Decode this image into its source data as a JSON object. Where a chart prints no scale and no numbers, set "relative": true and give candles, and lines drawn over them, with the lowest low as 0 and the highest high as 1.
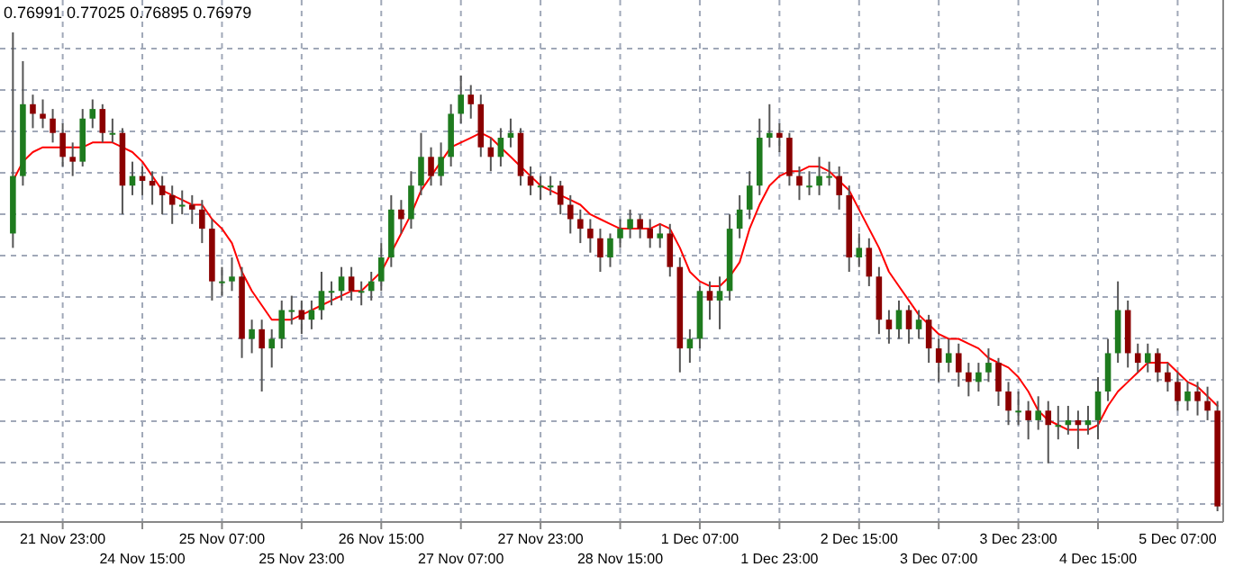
{
  "chart_data": {
    "type": "candlestick",
    "relative": true,
    "grid": true,
    "annotations": [
      "0.76991 0.77025 0.76895 0.76979"
    ],
    "categories": [
      null,
      null,
      null,
      null,
      null,
      "21 Nov 23:00",
      null,
      null,
      null,
      null,
      null,
      null,
      null,
      "24 Nov 15:00",
      null,
      null,
      null,
      null,
      null,
      null,
      null,
      "25 Nov 07:00",
      null,
      null,
      null,
      null,
      null,
      null,
      null,
      "25 Nov 23:00",
      null,
      null,
      null,
      null,
      null,
      null,
      null,
      "26 Nov 15:00",
      null,
      null,
      null,
      null,
      null,
      null,
      null,
      "27 Nov 07:00",
      null,
      null,
      null,
      null,
      null,
      null,
      null,
      "27 Nov 23:00",
      null,
      null,
      null,
      null,
      null,
      null,
      null,
      "28 Nov 15:00",
      null,
      null,
      null,
      null,
      null,
      null,
      null,
      "1 Dec 07:00",
      null,
      null,
      null,
      null,
      null,
      null,
      null,
      "1 Dec 23:00",
      null,
      null,
      null,
      null,
      null,
      null,
      null,
      "2 Dec 15:00",
      null,
      null,
      null,
      null,
      null,
      null,
      null,
      "3 Dec 07:00",
      null,
      null,
      null,
      null,
      null,
      null,
      null,
      "3 Dec 23:00",
      null,
      null,
      null,
      null,
      null,
      null,
      null,
      "4 Dec 15:00",
      null,
      null,
      null,
      null,
      null,
      null,
      null,
      "5 Dec 07:00",
      null,
      null,
      null,
      null
    ],
    "ohlc": [
      [
        0.58,
        1.0,
        0.55,
        0.7
      ],
      [
        0.7,
        0.94,
        0.68,
        0.85
      ],
      [
        0.85,
        0.87,
        0.8,
        0.83
      ],
      [
        0.83,
        0.86,
        0.8,
        0.82
      ],
      [
        0.82,
        0.84,
        0.77,
        0.79
      ],
      [
        0.79,
        0.81,
        0.72,
        0.74
      ],
      [
        0.74,
        0.77,
        0.7,
        0.73
      ],
      [
        0.73,
        0.84,
        0.72,
        0.82
      ],
      [
        0.82,
        0.86,
        0.8,
        0.84
      ],
      [
        0.84,
        0.85,
        0.77,
        0.79
      ],
      [
        0.79,
        0.82,
        0.77,
        0.79
      ],
      [
        0.79,
        0.8,
        0.62,
        0.68
      ],
      [
        0.68,
        0.73,
        0.66,
        0.7
      ],
      [
        0.7,
        0.72,
        0.66,
        0.69
      ],
      [
        0.69,
        0.71,
        0.64,
        0.68
      ],
      [
        0.68,
        0.7,
        0.62,
        0.66
      ],
      [
        0.66,
        0.68,
        0.6,
        0.64
      ],
      [
        0.64,
        0.67,
        0.62,
        0.64
      ],
      [
        0.64,
        0.66,
        0.6,
        0.63
      ],
      [
        0.63,
        0.65,
        0.56,
        0.59
      ],
      [
        0.59,
        0.61,
        0.44,
        0.48
      ],
      [
        0.48,
        0.51,
        0.45,
        0.48
      ],
      [
        0.48,
        0.53,
        0.46,
        0.49
      ],
      [
        0.49,
        0.51,
        0.32,
        0.36
      ],
      [
        0.36,
        0.4,
        0.33,
        0.38
      ],
      [
        0.38,
        0.4,
        0.25,
        0.34
      ],
      [
        0.34,
        0.38,
        0.3,
        0.36
      ],
      [
        0.36,
        0.44,
        0.34,
        0.42
      ],
      [
        0.42,
        0.45,
        0.39,
        0.42
      ],
      [
        0.42,
        0.44,
        0.37,
        0.4
      ],
      [
        0.4,
        0.44,
        0.38,
        0.42
      ],
      [
        0.42,
        0.5,
        0.4,
        0.46
      ],
      [
        0.46,
        0.48,
        0.43,
        0.46
      ],
      [
        0.46,
        0.51,
        0.44,
        0.49
      ],
      [
        0.49,
        0.51,
        0.44,
        0.46
      ],
      [
        0.46,
        0.48,
        0.43,
        0.46
      ],
      [
        0.46,
        0.5,
        0.44,
        0.48
      ],
      [
        0.48,
        0.56,
        0.46,
        0.53
      ],
      [
        0.53,
        0.66,
        0.51,
        0.63
      ],
      [
        0.63,
        0.65,
        0.58,
        0.61
      ],
      [
        0.61,
        0.71,
        0.59,
        0.68
      ],
      [
        0.68,
        0.79,
        0.66,
        0.74
      ],
      [
        0.74,
        0.76,
        0.68,
        0.7
      ],
      [
        0.7,
        0.77,
        0.68,
        0.74
      ],
      [
        0.74,
        0.85,
        0.72,
        0.83
      ],
      [
        0.83,
        0.91,
        0.81,
        0.87
      ],
      [
        0.87,
        0.89,
        0.82,
        0.85
      ],
      [
        0.85,
        0.87,
        0.74,
        0.76
      ],
      [
        0.76,
        0.78,
        0.71,
        0.74
      ],
      [
        0.74,
        0.8,
        0.72,
        0.78
      ],
      [
        0.78,
        0.82,
        0.76,
        0.79
      ],
      [
        0.79,
        0.8,
        0.68,
        0.7
      ],
      [
        0.7,
        0.72,
        0.66,
        0.68
      ],
      [
        0.68,
        0.7,
        0.65,
        0.68
      ],
      [
        0.68,
        0.7,
        0.66,
        0.68
      ],
      [
        0.68,
        0.69,
        0.62,
        0.64
      ],
      [
        0.64,
        0.66,
        0.58,
        0.61
      ],
      [
        0.61,
        0.63,
        0.56,
        0.59
      ],
      [
        0.59,
        0.61,
        0.54,
        0.57
      ],
      [
        0.57,
        0.59,
        0.5,
        0.53
      ],
      [
        0.53,
        0.58,
        0.51,
        0.57
      ],
      [
        0.57,
        0.61,
        0.55,
        0.59
      ],
      [
        0.59,
        0.63,
        0.57,
        0.61
      ],
      [
        0.61,
        0.62,
        0.57,
        0.59
      ],
      [
        0.59,
        0.61,
        0.55,
        0.57
      ],
      [
        0.57,
        0.6,
        0.55,
        0.58
      ],
      [
        0.58,
        0.6,
        0.49,
        0.51
      ],
      [
        0.51,
        0.53,
        0.29,
        0.34
      ],
      [
        0.34,
        0.38,
        0.31,
        0.36
      ],
      [
        0.36,
        0.47,
        0.34,
        0.46
      ],
      [
        0.46,
        0.48,
        0.4,
        0.44
      ],
      [
        0.44,
        0.49,
        0.38,
        0.46
      ],
      [
        0.46,
        0.62,
        0.44,
        0.59
      ],
      [
        0.59,
        0.66,
        0.57,
        0.63
      ],
      [
        0.63,
        0.71,
        0.61,
        0.68
      ],
      [
        0.68,
        0.82,
        0.66,
        0.78
      ],
      [
        0.78,
        0.85,
        0.76,
        0.79
      ],
      [
        0.79,
        0.81,
        0.75,
        0.78
      ],
      [
        0.78,
        0.79,
        0.68,
        0.7
      ],
      [
        0.7,
        0.72,
        0.65,
        0.68
      ],
      [
        0.68,
        0.71,
        0.66,
        0.68
      ],
      [
        0.68,
        0.74,
        0.66,
        0.7
      ],
      [
        0.7,
        0.73,
        0.68,
        0.7
      ],
      [
        0.7,
        0.72,
        0.63,
        0.66
      ],
      [
        0.66,
        0.68,
        0.5,
        0.53
      ],
      [
        0.53,
        0.58,
        0.51,
        0.55
      ],
      [
        0.55,
        0.57,
        0.47,
        0.49
      ],
      [
        0.49,
        0.51,
        0.37,
        0.4
      ],
      [
        0.4,
        0.42,
        0.35,
        0.38
      ],
      [
        0.38,
        0.44,
        0.36,
        0.42
      ],
      [
        0.42,
        0.43,
        0.35,
        0.38
      ],
      [
        0.38,
        0.42,
        0.36,
        0.4
      ],
      [
        0.4,
        0.41,
        0.31,
        0.34
      ],
      [
        0.34,
        0.36,
        0.27,
        0.31
      ],
      [
        0.31,
        0.36,
        0.29,
        0.33
      ],
      [
        0.33,
        0.35,
        0.26,
        0.29
      ],
      [
        0.29,
        0.31,
        0.24,
        0.27
      ],
      [
        0.27,
        0.31,
        0.25,
        0.29
      ],
      [
        0.29,
        0.34,
        0.27,
        0.31
      ],
      [
        0.31,
        0.32,
        0.22,
        0.25
      ],
      [
        0.25,
        0.27,
        0.18,
        0.21
      ],
      [
        0.21,
        0.25,
        0.18,
        0.21
      ],
      [
        0.21,
        0.23,
        0.15,
        0.19
      ],
      [
        0.19,
        0.24,
        0.17,
        0.21
      ],
      [
        0.21,
        0.23,
        0.1,
        0.18
      ],
      [
        0.18,
        0.22,
        0.15,
        0.18
      ],
      [
        0.18,
        0.22,
        0.16,
        0.19
      ],
      [
        0.19,
        0.21,
        0.13,
        0.18
      ],
      [
        0.18,
        0.22,
        0.16,
        0.19
      ],
      [
        0.19,
        0.28,
        0.15,
        0.25
      ],
      [
        0.25,
        0.36,
        0.23,
        0.33
      ],
      [
        0.33,
        0.48,
        0.31,
        0.42
      ],
      [
        0.42,
        0.44,
        0.3,
        0.33
      ],
      [
        0.33,
        0.35,
        0.29,
        0.31
      ],
      [
        0.31,
        0.35,
        0.29,
        0.33
      ],
      [
        0.33,
        0.34,
        0.27,
        0.29
      ],
      [
        0.29,
        0.31,
        0.25,
        0.27
      ],
      [
        0.27,
        0.29,
        0.21,
        0.23
      ],
      [
        0.23,
        0.27,
        0.21,
        0.25
      ],
      [
        0.25,
        0.27,
        0.2,
        0.23
      ],
      [
        0.23,
        0.26,
        0.19,
        0.21
      ],
      [
        0.21,
        0.23,
        0.0,
        0.01
      ]
    ],
    "series": [
      {
        "type": "line",
        "color": "#ff0000",
        "values": [
          0.69,
          0.73,
          0.75,
          0.76,
          0.76,
          0.76,
          0.76,
          0.76,
          0.77,
          0.77,
          0.77,
          0.76,
          0.75,
          0.73,
          0.7,
          0.67,
          0.66,
          0.65,
          0.64,
          0.64,
          0.61,
          0.59,
          0.56,
          0.5,
          0.46,
          0.43,
          0.4,
          0.4,
          0.4,
          0.41,
          0.42,
          0.43,
          0.44,
          0.45,
          0.46,
          0.46,
          0.48,
          0.5,
          0.54,
          0.58,
          0.62,
          0.67,
          0.7,
          0.73,
          0.76,
          0.77,
          0.78,
          0.79,
          0.78,
          0.76,
          0.74,
          0.72,
          0.7,
          0.68,
          0.67,
          0.66,
          0.65,
          0.64,
          0.62,
          0.61,
          0.6,
          0.59,
          0.59,
          0.59,
          0.59,
          0.6,
          0.59,
          0.55,
          0.5,
          0.48,
          0.47,
          0.47,
          0.49,
          0.52,
          0.59,
          0.64,
          0.68,
          0.7,
          0.71,
          0.71,
          0.72,
          0.72,
          0.71,
          0.69,
          0.67,
          0.63,
          0.59,
          0.55,
          0.5,
          0.47,
          0.44,
          0.41,
          0.39,
          0.37,
          0.36,
          0.36,
          0.35,
          0.34,
          0.32,
          0.31,
          0.3,
          0.28,
          0.25,
          0.21,
          0.19,
          0.18,
          0.17,
          0.17,
          0.17,
          0.18,
          0.22,
          0.25,
          0.27,
          0.29,
          0.31,
          0.31,
          0.31,
          0.29,
          0.27,
          0.26,
          0.24,
          0.22
        ]
      }
    ]
  }
}
